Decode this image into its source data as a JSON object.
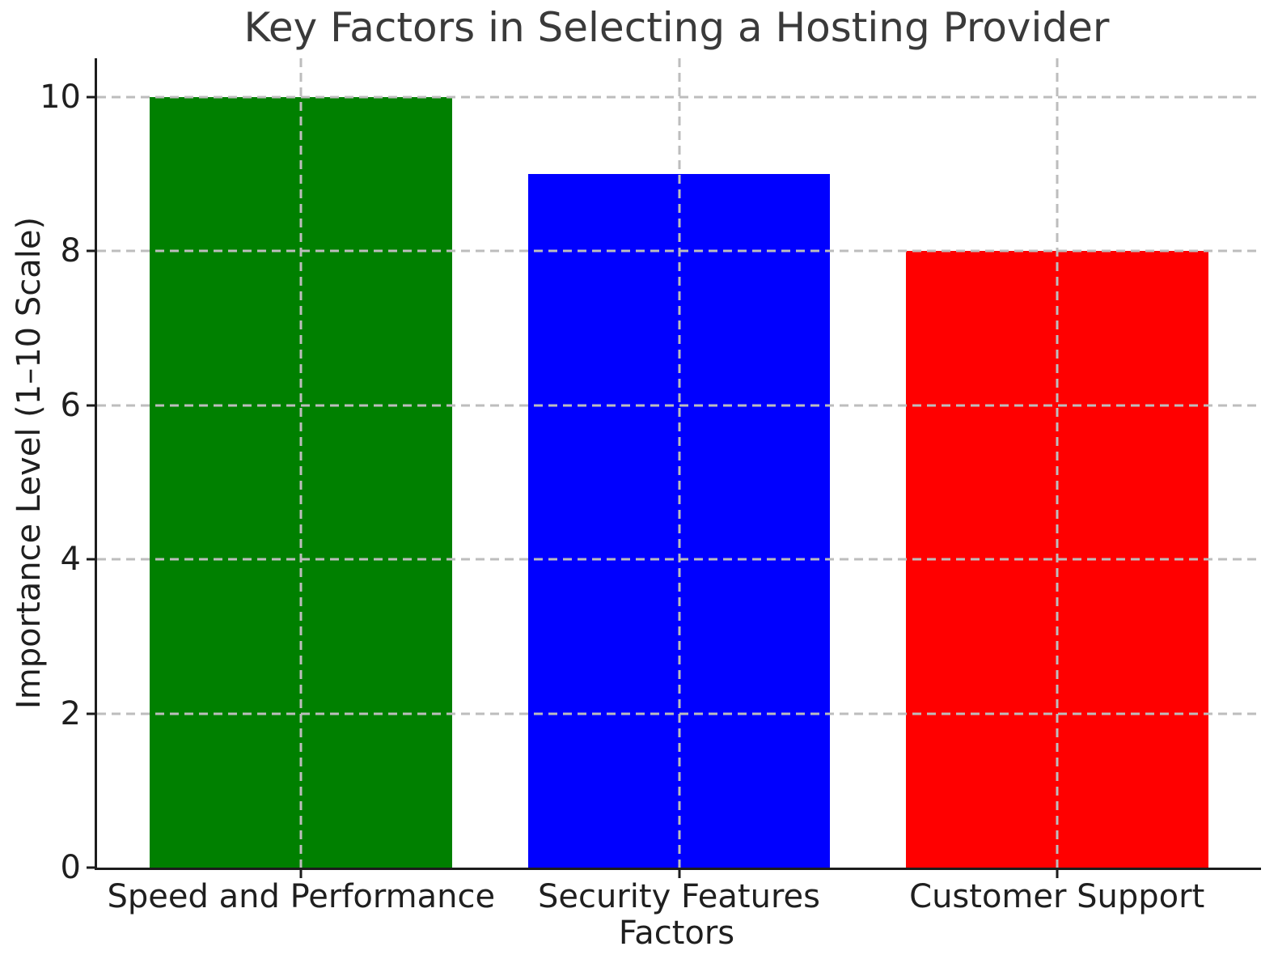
{
  "chart_data": {
    "type": "bar",
    "title": "Key Factors in Selecting a Hosting Provider",
    "xlabel": "Factors",
    "ylabel": "Importance Level (1–10 Scale)",
    "categories": [
      "Speed and Performance",
      "Security Features",
      "Customer Support"
    ],
    "values": [
      10,
      9,
      8
    ],
    "bar_colors": [
      "#008000",
      "#0000ff",
      "#ff0000"
    ],
    "bar_width": 0.8,
    "xlim": [
      -0.54,
      2.54
    ],
    "ylim": [
      0,
      10.5
    ],
    "yticks": [
      0,
      2,
      4,
      6,
      8,
      10
    ],
    "grid": "both-dashed-above-bars",
    "legend": "none",
    "spines": "left-bottom-only"
  },
  "colors": {
    "grid": "#bdbdbd",
    "spine": "#1c1c1c",
    "text": "#1f1f1f",
    "title_text": "#3a3a3a",
    "background": "#ffffff"
  }
}
